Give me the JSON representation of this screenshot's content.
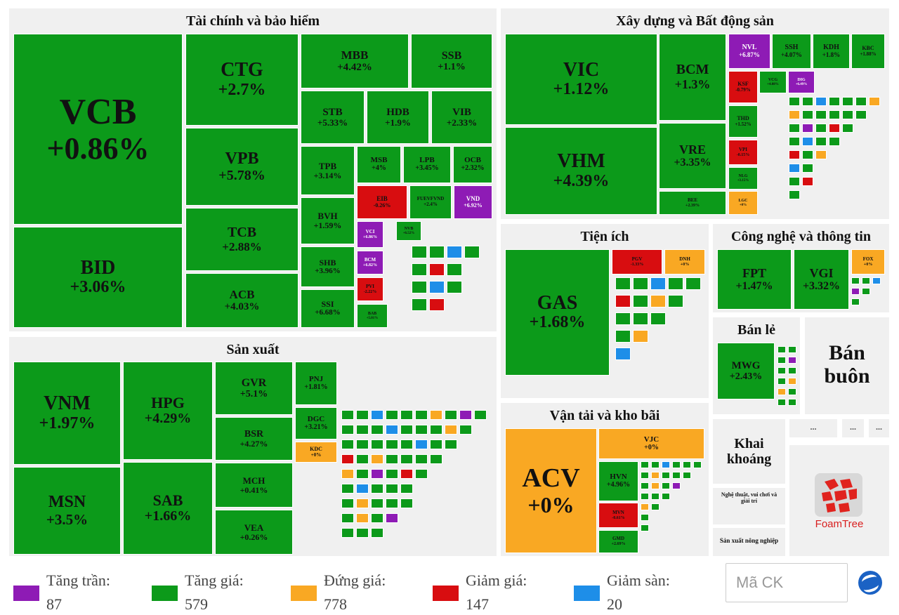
{
  "sectors": [
    {
      "title": "Tài chính và bảo hiểm"
    },
    {
      "title": "Xây dựng và Bất động sản"
    },
    {
      "title": "Sản xuất"
    },
    {
      "title": "Tiện ích"
    },
    {
      "title": "Công nghệ và thông tin"
    },
    {
      "title": "Bán lẻ"
    },
    {
      "title": "Vận tải và kho bãi"
    }
  ],
  "big_labels": {
    "ban_buon": "Bán buôn",
    "khai_khoang": "Khai khoáng",
    "nghe_thuat": "Nghệ thuật, vui chơi và giải trí",
    "san_xuat_nong_nghiep": "Sản xuất nông nghiệp"
  },
  "tiles": [
    {
      "code": "VCB",
      "chg": "+0.86%",
      "state": "up"
    },
    {
      "code": "BID",
      "chg": "+3.06%",
      "state": "up"
    },
    {
      "code": "CTG",
      "chg": "+2.7%",
      "state": "up"
    },
    {
      "code": "VPB",
      "chg": "+5.78%",
      "state": "up"
    },
    {
      "code": "TCB",
      "chg": "+2.88%",
      "state": "up"
    },
    {
      "code": "ACB",
      "chg": "+4.03%",
      "state": "up"
    },
    {
      "code": "MBB",
      "chg": "+4.42%",
      "state": "up"
    },
    {
      "code": "SSB",
      "chg": "+1.1%",
      "state": "up"
    },
    {
      "code": "STB",
      "chg": "+5.33%",
      "state": "up"
    },
    {
      "code": "HDB",
      "chg": "+1.9%",
      "state": "up"
    },
    {
      "code": "VIB",
      "chg": "+2.33%",
      "state": "up"
    },
    {
      "code": "TPB",
      "chg": "+3.14%",
      "state": "up"
    },
    {
      "code": "MSB",
      "chg": "+4%",
      "state": "up"
    },
    {
      "code": "LPB",
      "chg": "+3.45%",
      "state": "up"
    },
    {
      "code": "OCB",
      "chg": "+2.32%",
      "state": "up"
    },
    {
      "code": "BVH",
      "chg": "+1.59%",
      "state": "up"
    },
    {
      "code": "EIB",
      "chg": "-0.26%",
      "state": "down"
    },
    {
      "code": "FUEVFVND",
      "chg": "+2.4%",
      "state": "up"
    },
    {
      "code": "VND",
      "chg": "+6.92%",
      "state": "ceil"
    },
    {
      "code": "SHB",
      "chg": "+3.96%",
      "state": "up"
    },
    {
      "code": "VCI",
      "chg": "+6.86%",
      "state": "ceil"
    },
    {
      "code": "NVB",
      "chg": "+6.52%",
      "state": "up"
    },
    {
      "code": "SSI",
      "chg": "+6.68%",
      "state": "up"
    },
    {
      "code": "BCM",
      "chg": "+6.82%",
      "state": "ceil"
    },
    {
      "code": "PVI",
      "chg": "-2.22%",
      "state": "down"
    },
    {
      "code": "BAB",
      "chg": "+5.01%",
      "state": "up"
    },
    {
      "code": "VIC",
      "chg": "+1.12%",
      "state": "up"
    },
    {
      "code": "VHM",
      "chg": "+4.39%",
      "state": "up"
    },
    {
      "code": "BCM",
      "chg": "+1.3%",
      "state": "up"
    },
    {
      "code": "VRE",
      "chg": "+3.35%",
      "state": "up"
    },
    {
      "code": "NVL",
      "chg": "+6.87%",
      "state": "ceil"
    },
    {
      "code": "SSH",
      "chg": "+4.07%",
      "state": "up"
    },
    {
      "code": "KDH",
      "chg": "+1.8%",
      "state": "up"
    },
    {
      "code": "KBC",
      "chg": "+1.88%",
      "state": "up"
    },
    {
      "code": "KSF",
      "chg": "-0.79%",
      "state": "down"
    },
    {
      "code": "VCG",
      "chg": "+4.08%",
      "state": "up"
    },
    {
      "code": "DIG",
      "chg": "+6.49%",
      "state": "ceil"
    },
    {
      "code": "THD",
      "chg": "+1.52%",
      "state": "up"
    },
    {
      "code": "VPI",
      "chg": "-0.15%",
      "state": "down"
    },
    {
      "code": "NLG",
      "chg": "+3.15%",
      "state": "up"
    },
    {
      "code": "LGC",
      "chg": "+0%",
      "state": "ref"
    },
    {
      "code": "BEE",
      "chg": "+2.39%",
      "state": "up"
    },
    {
      "code": "VNM",
      "chg": "+1.97%",
      "state": "up"
    },
    {
      "code": "MSN",
      "chg": "+3.5%",
      "state": "up"
    },
    {
      "code": "HPG",
      "chg": "+4.29%",
      "state": "up"
    },
    {
      "code": "SAB",
      "chg": "+1.66%",
      "state": "up"
    },
    {
      "code": "GVR",
      "chg": "+5.1%",
      "state": "up"
    },
    {
      "code": "BSR",
      "chg": "+4.27%",
      "state": "up"
    },
    {
      "code": "MCH",
      "chg": "+0.41%",
      "state": "up"
    },
    {
      "code": "VEA",
      "chg": "+0.26%",
      "state": "up"
    },
    {
      "code": "PNJ",
      "chg": "+1.81%",
      "state": "up"
    },
    {
      "code": "DGC",
      "chg": "+3.21%",
      "state": "up"
    },
    {
      "code": "KDC",
      "chg": "+0%",
      "state": "ref"
    },
    {
      "code": "GAS",
      "chg": "+1.68%",
      "state": "up"
    },
    {
      "code": "PGV",
      "chg": "-1.33%",
      "state": "down"
    },
    {
      "code": "DNH",
      "chg": "+0%",
      "state": "ref"
    },
    {
      "code": "FPT",
      "chg": "+1.47%",
      "state": "up"
    },
    {
      "code": "VGI",
      "chg": "+3.32%",
      "state": "up"
    },
    {
      "code": "FOX",
      "chg": "+0%",
      "state": "ref"
    },
    {
      "code": "MWG",
      "chg": "+2.43%",
      "state": "up"
    },
    {
      "code": "ACV",
      "chg": "+0%",
      "state": "ref"
    },
    {
      "code": "VJC",
      "chg": "+0%",
      "state": "ref"
    },
    {
      "code": "HVN",
      "chg": "+4.96%",
      "state": "up"
    },
    {
      "code": "MVN",
      "chg": "-0.61%",
      "state": "down"
    },
    {
      "code": "GMD",
      "chg": "+2.69%",
      "state": "up"
    }
  ],
  "overflow_label": "...",
  "foamtree_label": "FoamTree",
  "legend": [
    {
      "label": "Tăng trần:",
      "count": "87",
      "color": "#8e1bb5"
    },
    {
      "label": "Tăng giá:",
      "count": "579",
      "color": "#0c9a1a"
    },
    {
      "label": "Đứng giá:",
      "count": "778",
      "color": "#f9a823"
    },
    {
      "label": "Giảm giá:",
      "count": "147",
      "color": "#d80d10"
    },
    {
      "label": "Giảm sàn:",
      "count": "20",
      "color": "#1e8ee8"
    }
  ],
  "search": {
    "placeholder": "Mã CK"
  },
  "colors": {
    "ceiling": "#8e1bb5",
    "up": "#0c9a1a",
    "reference": "#f9a823",
    "down": "#d80d10",
    "floor": "#1e8ee8"
  }
}
